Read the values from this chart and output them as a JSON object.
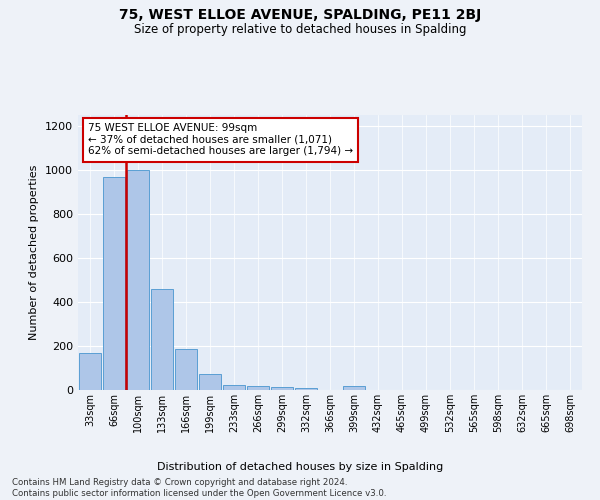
{
  "title1": "75, WEST ELLOE AVENUE, SPALDING, PE11 2BJ",
  "title2": "Size of property relative to detached houses in Spalding",
  "xlabel": "Distribution of detached houses by size in Spalding",
  "ylabel": "Number of detached properties",
  "bar_labels": [
    "33sqm",
    "66sqm",
    "100sqm",
    "133sqm",
    "166sqm",
    "199sqm",
    "233sqm",
    "266sqm",
    "299sqm",
    "332sqm",
    "366sqm",
    "399sqm",
    "432sqm",
    "465sqm",
    "499sqm",
    "532sqm",
    "565sqm",
    "598sqm",
    "632sqm",
    "665sqm",
    "698sqm"
  ],
  "bar_values": [
    170,
    970,
    1000,
    460,
    185,
    75,
    25,
    20,
    13,
    10,
    0,
    18,
    0,
    0,
    0,
    0,
    0,
    0,
    0,
    0,
    0
  ],
  "bar_color": "#aec6e8",
  "bar_edge_color": "#5a9fd4",
  "highlight_bar_index": 2,
  "highlight_line_color": "#cc0000",
  "ylim": [
    0,
    1250
  ],
  "yticks": [
    0,
    200,
    400,
    600,
    800,
    1000,
    1200
  ],
  "annotation_text": "75 WEST ELLOE AVENUE: 99sqm\n← 37% of detached houses are smaller (1,071)\n62% of semi-detached houses are larger (1,794) →",
  "annotation_box_color": "#ffffff",
  "annotation_box_edge": "#cc0000",
  "footer_text": "Contains HM Land Registry data © Crown copyright and database right 2024.\nContains public sector information licensed under the Open Government Licence v3.0.",
  "bg_color": "#eef2f8",
  "plot_bg_color": "#e4ecf7"
}
